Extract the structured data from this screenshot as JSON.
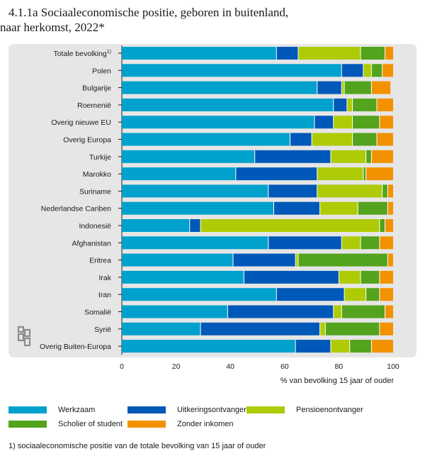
{
  "title": {
    "line1": "4.1.1a Sociaaleconomische positie, geboren in buitenland,",
    "line2": "naar herkomst, 2022*"
  },
  "chart_data": {
    "type": "bar",
    "orientation": "horizontal",
    "stacked": true,
    "categories": [
      "Totale bevolking",
      "Polen",
      "Bulgarije",
      "Roemenië",
      "Overig nieuwe EU",
      "Overig Europa",
      "Turkije",
      "Marokko",
      "Suriname",
      "Nederlandse Cariben",
      "Indonesië",
      "Afghanistan",
      "Eritrea",
      "Irak",
      "Iran",
      "Somalië",
      "Syrië",
      "Overig Buiten-Europa"
    ],
    "category_superscripts": [
      "1)",
      "",
      "",
      "",
      "",
      "",
      "",
      "",
      "",
      "",
      "",
      "",
      "",
      "",
      "",
      "",
      "",
      ""
    ],
    "series": [
      {
        "name": "Werkzaam",
        "color": "#00a1cd",
        "values": [
          57,
          81,
          72,
          78,
          71,
          62,
          49,
          42,
          54,
          56,
          25,
          54,
          41,
          45,
          57,
          39,
          29,
          64
        ]
      },
      {
        "name": "Uitkeringsontvanger",
        "color": "#0058b8",
        "values": [
          8,
          8,
          9,
          5,
          7,
          8,
          28,
          30,
          18,
          17,
          4,
          27,
          23,
          35,
          25,
          39,
          44,
          13
        ]
      },
      {
        "name": "Pensioenontvanger",
        "color": "#afcb05",
        "values": [
          23,
          3,
          1,
          2,
          7,
          15,
          13,
          17,
          24,
          14,
          66,
          7,
          1,
          8,
          8,
          3,
          2,
          7
        ]
      },
      {
        "name": "Scholier of student",
        "color": "#53a31d",
        "values": [
          9,
          4,
          10,
          9,
          10,
          9,
          2,
          1,
          2,
          11,
          2,
          7,
          33,
          7,
          5,
          16,
          20,
          8
        ]
      },
      {
        "name": "Zonder inkomen",
        "color": "#f39200",
        "values": [
          3,
          4,
          7,
          6,
          5,
          6,
          8,
          10,
          2,
          2,
          3,
          5,
          2,
          5,
          5,
          3,
          5,
          8
        ]
      }
    ],
    "xlabel": "% van bevolking 15 jaar of ouder",
    "xlim": [
      0,
      100
    ],
    "xticks": [
      "0",
      "20",
      "40",
      "60",
      "80",
      "100"
    ],
    "grid": false,
    "legend_position": "bottom"
  },
  "footnote": "1) sociaaleconomische positie van de totale bevolking van 15 jaar of ouder"
}
